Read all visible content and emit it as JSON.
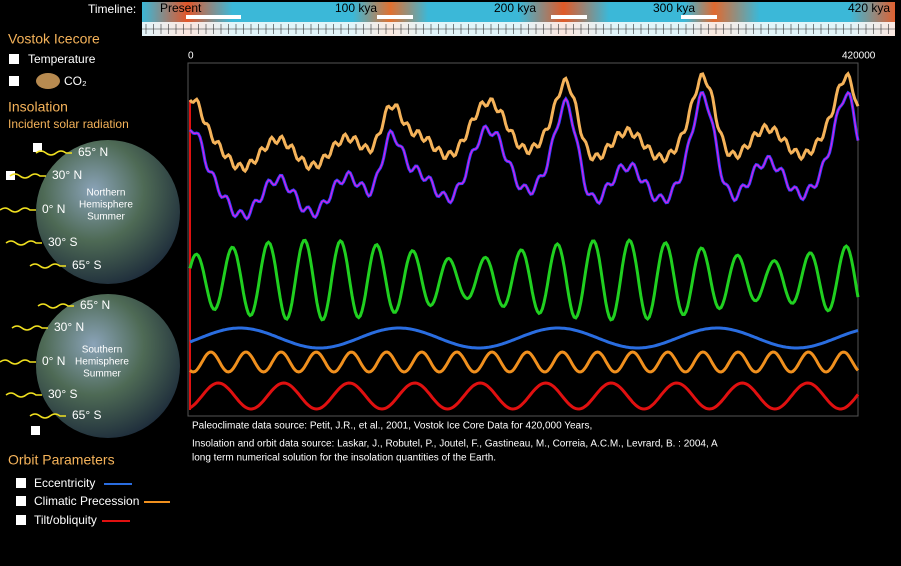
{
  "timeline": {
    "label": "Timeline:",
    "marks": [
      "Present",
      "100 kya",
      "200 kya",
      "300 kya",
      "420 kya"
    ]
  },
  "icecore": {
    "title": "Vostok Icecore",
    "items": [
      "Temperature",
      "CO₂"
    ]
  },
  "insolation": {
    "title": "Insolation",
    "subtitle": "Incident solar radiation",
    "northern": {
      "latitudes": [
        "65° N",
        "30° N",
        "0° N",
        "30° S",
        "65° S"
      ],
      "caption": [
        "Northern",
        "Hemisphere",
        "Summer"
      ]
    },
    "southern": {
      "latitudes": [
        "65° N",
        "30° N",
        "0° N",
        "30° S",
        "65° S"
      ],
      "caption": [
        "Southern",
        "Hemisphere",
        "Summer"
      ]
    }
  },
  "chart": {
    "x_start": 0,
    "x_end": 420000
  },
  "sources": [
    "Paleoclimate data source: Petit, J.R., et al., 2001, Vostok Ice Core Data for 420,000 Years,",
    "Insolation and orbit data source: Laskar, J., Robutel, P., Joutel, F., Gastineau, M., Correia, A.C.M., Levrard, B. : 2004, A",
    "long term numerical solution for the insolation quantities of the Earth."
  ],
  "orbit": {
    "title": "Orbit Parameters",
    "items": [
      "Eccentricity",
      "Climatic Precession",
      "Tilt/obliquity"
    ]
  }
}
